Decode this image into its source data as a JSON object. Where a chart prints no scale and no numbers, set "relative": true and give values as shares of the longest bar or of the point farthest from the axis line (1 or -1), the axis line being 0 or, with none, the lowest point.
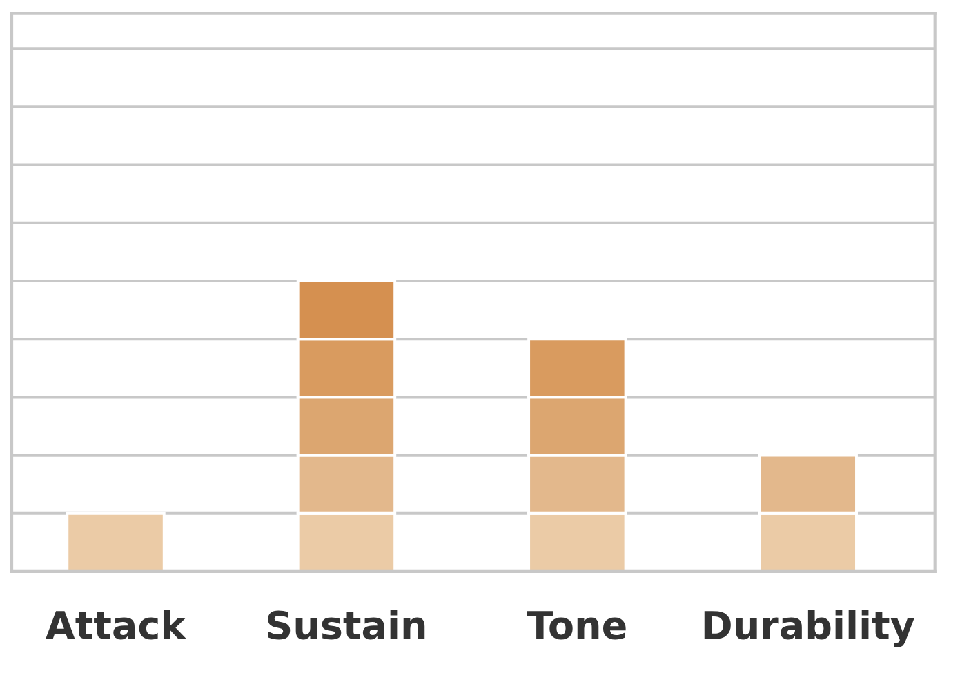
{
  "chart_data": {
    "type": "bar",
    "relative": true,
    "stacked": true,
    "grid": "y",
    "legend": false,
    "categories": [
      "Attack",
      "Sustain",
      "Tone",
      "Durability"
    ],
    "series": [
      {
        "color": "#ebcba6",
        "values": [
          0.2,
          0.2,
          0.2,
          0.2
        ]
      },
      {
        "color": "#e3b88c",
        "values": [
          null,
          0.2,
          0.2,
          0.2
        ]
      },
      {
        "color": "#dca670",
        "values": [
          null,
          0.2,
          0.2,
          null
        ]
      },
      {
        "color": "#d99b5f",
        "values": [
          null,
          0.2,
          0.2,
          null
        ]
      },
      {
        "color": "#d59050",
        "values": [
          null,
          0.2,
          null,
          null
        ]
      }
    ]
  }
}
